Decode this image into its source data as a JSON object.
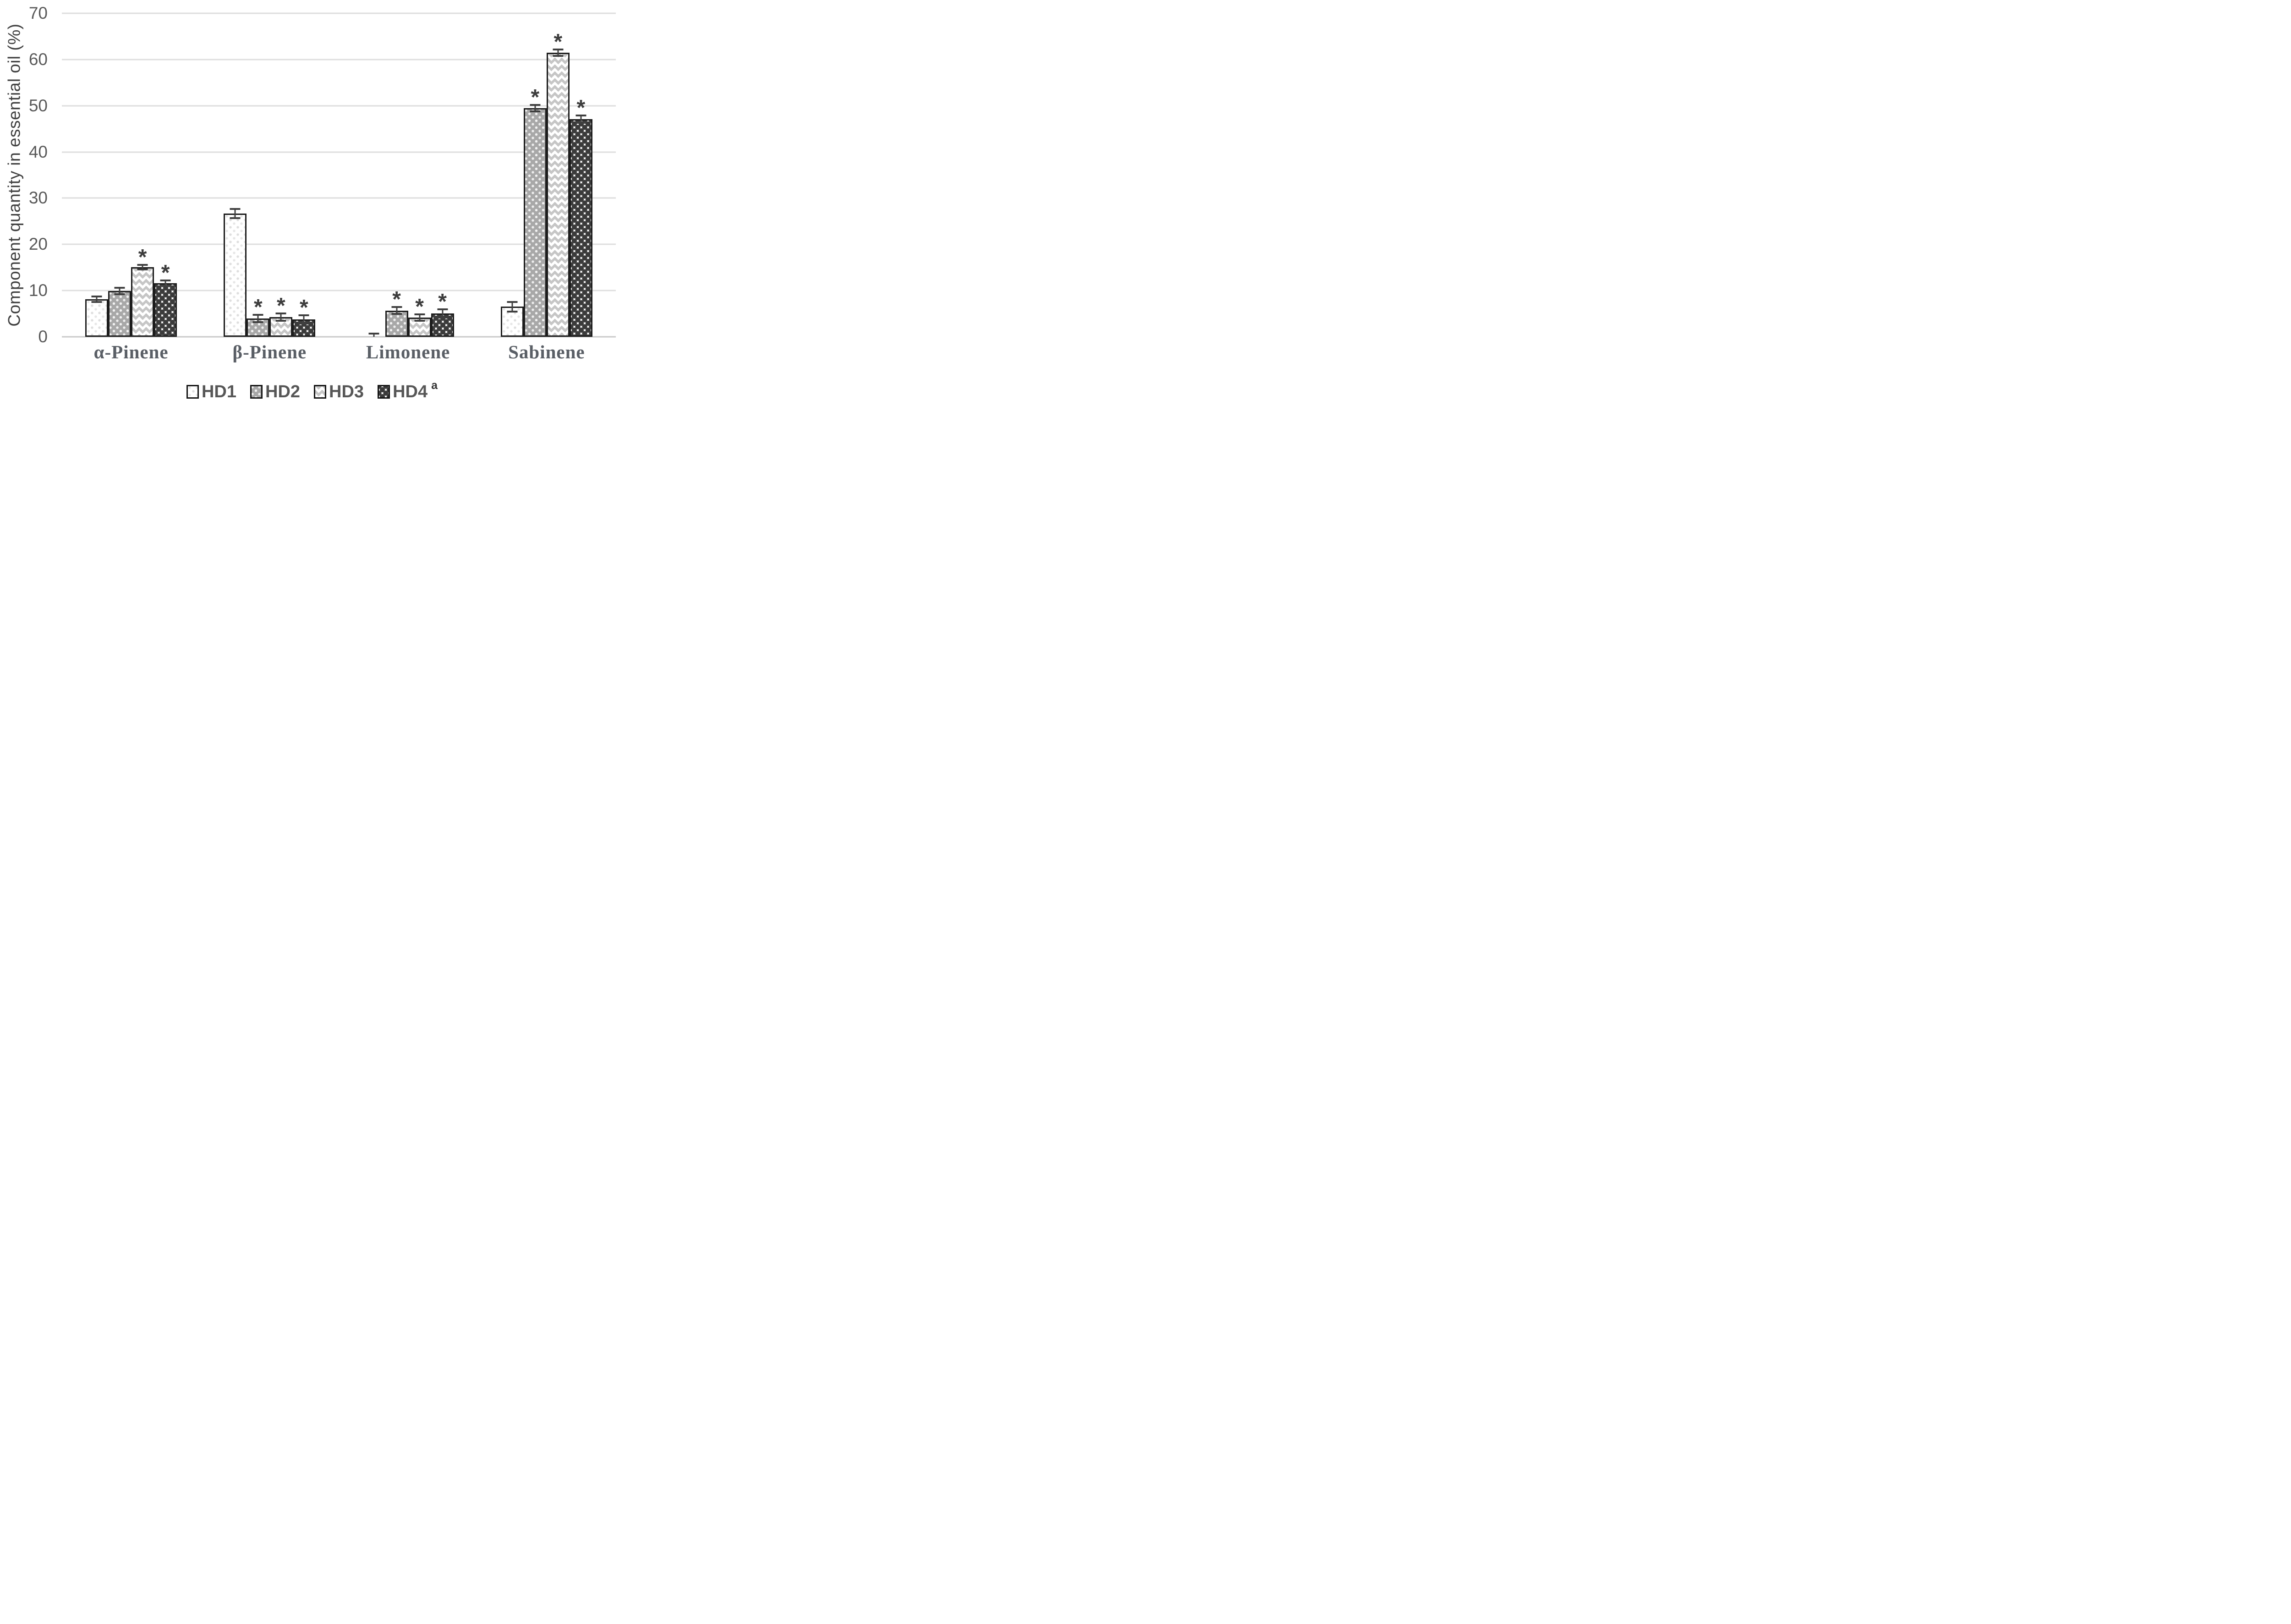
{
  "chart_data": {
    "type": "bar",
    "title": "",
    "xlabel": "",
    "ylabel": "Component quantity in essential oil (%)",
    "ylim": [
      0,
      70
    ],
    "yticks": [
      0,
      10,
      20,
      30,
      40,
      50,
      60,
      70
    ],
    "grid": true,
    "legend_position": "bottom",
    "significance_marker": "*",
    "categories": [
      "α-Pinene",
      "β-Pinene",
      "Limonene",
      "Sabinene"
    ],
    "series": [
      {
        "name": "HD1",
        "superscript": "",
        "pattern": "white-light-dots",
        "values": [
          8.1,
          26.7,
          0.2,
          6.5
        ],
        "errors": [
          0.6,
          1.0,
          0.5,
          1.0
        ],
        "significant": [
          false,
          false,
          false,
          false
        ]
      },
      {
        "name": "HD2",
        "superscript": "",
        "pattern": "gray-white-dots",
        "values": [
          9.9,
          4.0,
          5.7,
          49.5
        ],
        "errors": [
          0.7,
          0.8,
          0.7,
          0.7
        ],
        "significant": [
          false,
          true,
          true,
          true
        ]
      },
      {
        "name": "HD3",
        "superscript": "",
        "pattern": "white-zigzag-waves",
        "values": [
          15.1,
          4.3,
          4.2,
          61.5
        ],
        "errors": [
          0.5,
          0.8,
          0.7,
          0.7
        ],
        "significant": [
          true,
          true,
          true,
          true
        ]
      },
      {
        "name": "HD4",
        "superscript": "a",
        "pattern": "white-dark-diamond-dots",
        "values": [
          11.6,
          3.8,
          5.1,
          47.1
        ],
        "errors": [
          0.6,
          0.9,
          0.9,
          0.8
        ],
        "significant": [
          true,
          true,
          true,
          true
        ]
      }
    ]
  },
  "colors": {
    "background": "#ffffff",
    "gridline": "#dedede",
    "axis_baseline": "#c9c9c9",
    "bar_border": "#1c1c1c",
    "error_bar": "#3f3f3f",
    "asterisk": "#3d3d3d",
    "tick_label": "#595959",
    "y_title": "#404040",
    "category_label": "#5a5f66",
    "legend_label": "#575757",
    "hd2_fill": "#a8a8a8",
    "pattern_dark_dot": "#3b3b3b",
    "pattern_light_dot": "#dfdfdf",
    "pattern_zigzag": "#c6c6c6"
  }
}
